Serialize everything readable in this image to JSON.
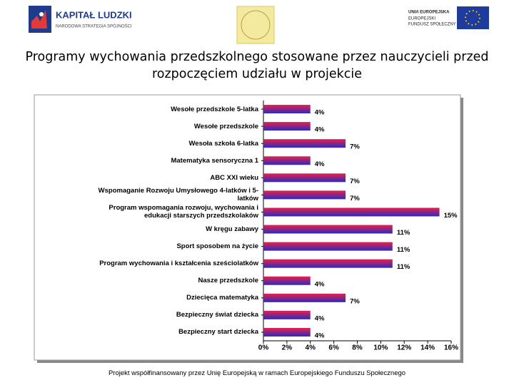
{
  "header": {
    "logo_left": {
      "title": "KAPITAŁ LUDZKI",
      "subtitle": "NARODOWA STRATEGIA SPÓJNOŚCI"
    },
    "logo_right": {
      "lines": [
        "UNIA EUROPEJSKA",
        "EUROPEJSKI",
        "FUNDUSZ SPOŁECZNY"
      ]
    }
  },
  "chart_data": {
    "type": "barh",
    "title": "Programy wychowania przedszkolnego stosowane przez nauczycieli przed rozpoczęciem udziału w projekcie",
    "categories": [
      "Wesołe przedszkole 5-latka",
      "Wesołe przedszkole",
      "Wesoła szkoła 6-latka",
      "Matematyka sensoryczna 1",
      "ABC XXI wieku",
      "Wspomaganie Rozwoju Umysłowego 4-latków i 5-latków",
      "Program wspomagania rozwoju, wychowania i edukacji starszych przedszkolaków",
      "W kręgu zabawy",
      "Sport sposobem na życie",
      "Program wychowania i kształcenia sześciolatków",
      "Nasze przedszkole",
      "Dziecięca matematyka",
      "Bezpieczny świat dziecka",
      "Bezpieczny start dziecka"
    ],
    "values": [
      4,
      4,
      7,
      4,
      7,
      7,
      15,
      11,
      11,
      11,
      4,
      7,
      4,
      4
    ],
    "value_labels": [
      "4%",
      "4%",
      "7%",
      "4%",
      "7%",
      "7%",
      "15%",
      "11%",
      "11%",
      "11%",
      "4%",
      "7%",
      "4%",
      "4%"
    ],
    "colors": [
      "#e8204a",
      "#2a2ac0"
    ],
    "xlim": [
      0,
      16
    ],
    "xticks": [
      {
        "value": 0,
        "label": "0%"
      },
      {
        "value": 2,
        "label": "2%"
      },
      {
        "value": 4,
        "label": "4%"
      },
      {
        "value": 6,
        "label": "6%"
      },
      {
        "value": 8,
        "label": "8%"
      },
      {
        "value": 10,
        "label": "10%"
      },
      {
        "value": 12,
        "label": "12%"
      },
      {
        "value": 14,
        "label": "14%"
      },
      {
        "value": 16,
        "label": "16%"
      }
    ]
  },
  "footer": "Projekt współfinansowany przez Unię Europejską w ramach Europejskiego Funduszu Społecznego"
}
